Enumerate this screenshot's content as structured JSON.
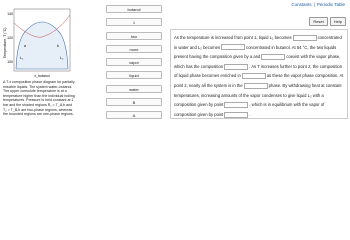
{
  "header": {
    "links": [
      "Constants",
      "Periodic Table"
    ],
    "separator": "|"
  },
  "buttons": [
    "Reset",
    "Help"
  ],
  "figure": {
    "y_axis_label": "Temperature, T (°C)",
    "ticks": [
      "140",
      "120",
      "100"
    ],
    "x_axis_label": "x_butanol",
    "region_labels": [
      "L₁",
      "L₂",
      "a",
      "b"
    ],
    "caption": "A T-x composition phase diagram for partially miscible liquids. The system water–butanol. The upper consolute temperature is at a temperature higher than the individual boiling temperatures. Pressure is held constant at 1 bar and the shaded regions R₁ = T_A,b and T₂ = T_B,b are two-phase regions, whereas the bounded regions are one-phase regions."
  },
  "word_bank": [
    "butanol",
    "1",
    "two",
    "none",
    "vapor",
    "liquid",
    "water",
    "B",
    "A"
  ],
  "question": {
    "segments": [
      "As the temperature is increased from point 1, liquid L₁ becomes",
      "concentrated in water and L₂ becomes",
      "concentrated in butanol. At 54 °C, the two liquids present having the composition given by a and",
      "coexist with the vapor phase, which has the composition",
      ". As T increases further to point 2, the composition of liquid phase becomes enriched in",
      "as these the vapor phase composition. At point 2, nearly all the system is in the",
      "phase. By withdrawing heat at constant temperatures, increasing amounts of the vapor condenses to give liquid L₂ with a composition given by point",
      ", which is in equilibrium with the vapor of composition given by point",
      "."
    ]
  }
}
